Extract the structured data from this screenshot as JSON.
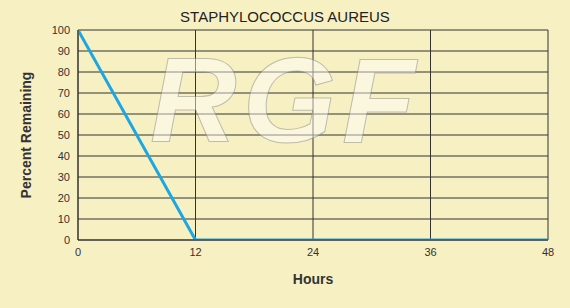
{
  "chart_data": {
    "type": "line",
    "title": "STAPHYLOCOCCUS AUREUS",
    "x_label": "Hours",
    "y_label": "Percent Remaining",
    "x": [
      0,
      12,
      48
    ],
    "values": [
      100,
      0,
      0
    ],
    "color": "#1ea6e0",
    "xlim": [
      0,
      48
    ],
    "xticks": [
      0,
      12,
      24,
      36,
      48
    ],
    "ylim": [
      0,
      100
    ],
    "yticks": [
      0,
      10,
      20,
      30,
      40,
      50,
      60,
      70,
      80,
      90,
      100
    ],
    "grid": true,
    "annotations": [
      "RGF"
    ]
  }
}
